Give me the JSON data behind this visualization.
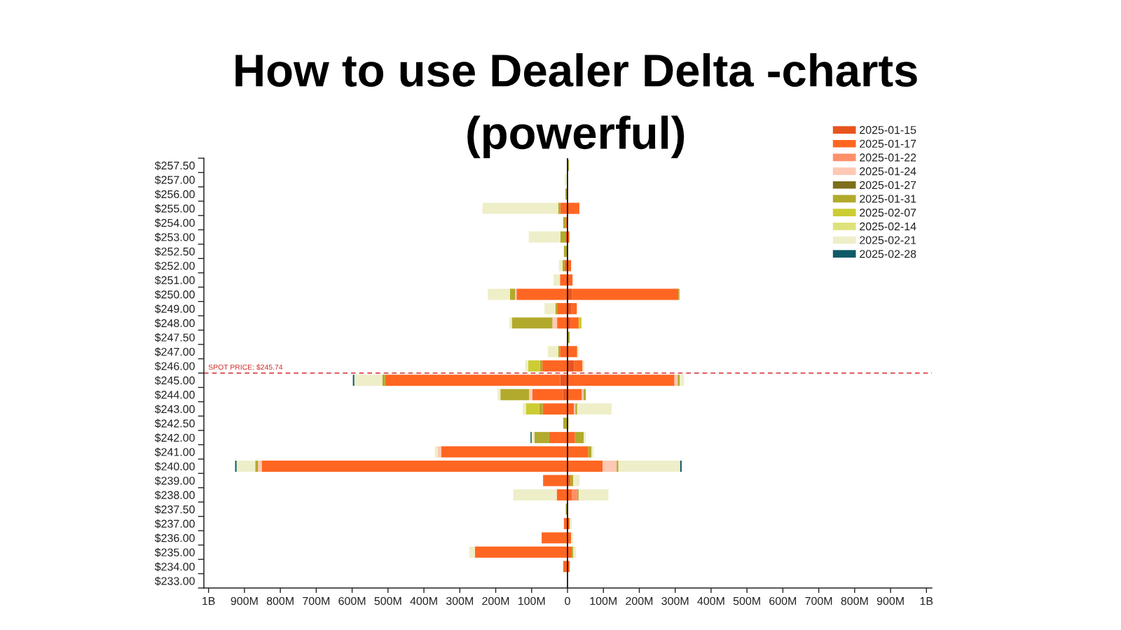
{
  "chart_data": {
    "type": "bar",
    "orientation": "horizontal",
    "stacked": true,
    "title": "How to use Dealer Delta -charts (powerful)",
    "categories": [
      "$257.50",
      "$257.00",
      "$256.00",
      "$255.00",
      "$254.00",
      "$253.00",
      "$252.50",
      "$252.00",
      "$251.00",
      "$250.00",
      "$249.00",
      "$248.00",
      "$247.50",
      "$247.00",
      "$246.00",
      "$245.00",
      "$244.00",
      "$243.00",
      "$242.50",
      "$242.00",
      "$241.00",
      "$240.00",
      "$239.00",
      "$238.00",
      "$237.50",
      "$237.00",
      "$236.00",
      "$235.00",
      "$234.00",
      "$233.00"
    ],
    "series": [
      {
        "name": "2025-01-15",
        "color": "#e8541f",
        "values": [
          null,
          null,
          null,
          null,
          null,
          null,
          null,
          null,
          null,
          12000000.0,
          10000000.0,
          8000000.0,
          null,
          null,
          18000000.0,
          null,
          null,
          null,
          null,
          null,
          null,
          null,
          null,
          null,
          null,
          null,
          null,
          null,
          null,
          null
        ]
      },
      {
        "color": "#e8541f",
        "values": [
          null,
          null,
          null,
          null,
          null,
          null,
          null,
          null,
          null,
          null,
          null,
          null,
          null,
          null,
          null,
          -20000000.0,
          -13000000.0,
          null,
          null,
          null,
          null,
          null,
          null,
          null,
          null,
          null,
          null,
          null,
          null,
          null
        ]
      },
      {
        "name": "2025-01-17",
        "color": "#ff6622",
        "values": [
          null,
          null,
          null,
          33000000.0,
          null,
          5000000.0,
          null,
          10000000.0,
          14000000.0,
          297000000.0,
          16000000.0,
          23000000.0,
          null,
          27000000.0,
          24000000.0,
          298000000.0,
          40000000.0,
          18000000.0,
          null,
          21000000.0,
          58000000.0,
          98000000.0,
          8000000.0,
          13000000.0,
          null,
          6000000.0,
          10000000.0,
          12000000.0,
          6000000.0,
          null
        ]
      },
      {
        "color": "#ff6622",
        "values": [
          null,
          null,
          null,
          -20000000.0,
          -4000000.0,
          -6000000.0,
          null,
          -8000000.0,
          -21000000.0,
          -142000000.0,
          -29000000.0,
          -29000000.0,
          null,
          -21000000.0,
          -70000000.0,
          -488000000.0,
          -85000000.0,
          -69000000.0,
          null,
          -51000000.0,
          -352000000.0,
          -852000000.0,
          -68000000.0,
          -30000000.0,
          null,
          -10000000.0,
          -72000000.0,
          -258000000.0,
          -12000000.0,
          null
        ]
      },
      {
        "name": "2025-01-22",
        "color": "#ff8f6b",
        "values": [
          null,
          null,
          null,
          null,
          null,
          null,
          null,
          null,
          null,
          null,
          null,
          null,
          null,
          null,
          null,
          null,
          null,
          null,
          null,
          null,
          null,
          null,
          null,
          14000000.0,
          null,
          null,
          null,
          null,
          null,
          null
        ]
      },
      {
        "name": "2025-01-24",
        "color": "#ffc8b4",
        "values": [
          null,
          null,
          null,
          null,
          null,
          null,
          null,
          null,
          null,
          null,
          null,
          null,
          null,
          null,
          null,
          9000000.0,
          5000000.0,
          4000000.0,
          null,
          null,
          null,
          39000000.0,
          null,
          null,
          null,
          null,
          null,
          null,
          null,
          null
        ]
      },
      {
        "color": "#ffc8b4",
        "values": [
          null,
          null,
          null,
          null,
          null,
          null,
          null,
          null,
          null,
          -4000000.0,
          null,
          -13000000.0,
          null,
          null,
          null,
          null,
          -9000000.0,
          null,
          null,
          null,
          -10000000.0,
          -10000000.0,
          null,
          null,
          null,
          null,
          null,
          null,
          null,
          null
        ]
      },
      {
        "name": "2025-01-27",
        "color": "#7d6e1c",
        "values": [
          null,
          null,
          null,
          null,
          null,
          null,
          null,
          null,
          null,
          null,
          null,
          null,
          null,
          null,
          null,
          null,
          null,
          null,
          null,
          null,
          null,
          null,
          null,
          null,
          null,
          null,
          null,
          null,
          null,
          null
        ]
      },
      {
        "name": "2025-01-31",
        "color": "#b2aa2c",
        "values": [
          4000000.0,
          null,
          null,
          null,
          null,
          null,
          null,
          null,
          null,
          3000000.0,
          null,
          null,
          6000000.0,
          null,
          null,
          6000000.0,
          6000000.0,
          5000000.0,
          null,
          24000000.0,
          9000000.0,
          5000000.0,
          8000000.0,
          4000000.0,
          null,
          null,
          null,
          4000000.0,
          null,
          null
        ]
      },
      {
        "color": "#b2aa2c",
        "values": [
          null,
          null,
          -6000000.0,
          -6000000.0,
          -8000000.0,
          -14000000.0,
          -10000000.0,
          -6000000.0,
          null,
          -14000000.0,
          -5000000.0,
          -113000000.0,
          null,
          -5000000.0,
          -7000000.0,
          -8000000.0,
          -80000000.0,
          -10000000.0,
          -12000000.0,
          -41000000.0,
          null,
          -8000000.0,
          null,
          null,
          -5000000.0,
          null,
          null,
          null,
          null,
          null
        ]
      },
      {
        "name": "2025-02-07",
        "color": "#cccc33",
        "values": [
          null,
          null,
          null,
          null,
          null,
          null,
          null,
          null,
          null,
          null,
          null,
          8000000.0,
          null,
          null,
          null,
          null,
          null,
          null,
          null,
          null,
          null,
          null,
          null,
          null,
          null,
          null,
          null,
          null,
          null,
          null
        ]
      },
      {
        "color": "#cccc33",
        "values": [
          null,
          null,
          null,
          null,
          null,
          null,
          null,
          null,
          null,
          null,
          null,
          null,
          null,
          null,
          -33000000.0,
          null,
          null,
          -37000000.0,
          null,
          null,
          null,
          null,
          null,
          null,
          null,
          null,
          null,
          null,
          null,
          null
        ]
      },
      {
        "name": "2025-02-14",
        "color": "#dee27c",
        "values": [
          null,
          null,
          null,
          null,
          null,
          null,
          null,
          null,
          null,
          null,
          null,
          null,
          null,
          null,
          null,
          null,
          null,
          null,
          null,
          null,
          null,
          null,
          null,
          null,
          null,
          null,
          null,
          null,
          null,
          null
        ]
      },
      {
        "name": "2025-02-21",
        "color": "#eeefc9",
        "values": [
          null,
          null,
          null,
          null,
          null,
          null,
          null,
          null,
          null,
          null,
          null,
          null,
          null,
          5000000.0,
          5000000.0,
          12000000.0,
          null,
          96000000.0,
          6000000.0,
          6000000.0,
          6000000.0,
          172000000.0,
          18000000.0,
          83000000.0,
          null,
          6000000.0,
          6000000.0,
          8000000.0,
          null,
          null
        ]
      },
      {
        "color": "#eeefc9",
        "values": [
          null,
          -8000000.0,
          null,
          -211000000.0,
          null,
          -88000000.0,
          null,
          -10000000.0,
          -18000000.0,
          -62000000.0,
          -30000000.0,
          -7000000.0,
          null,
          -29000000.0,
          -8000000.0,
          -78000000.0,
          -8000000.0,
          -9000000.0,
          null,
          -8000000.0,
          -8000000.0,
          -52000000.0,
          null,
          -121000000.0,
          null,
          null,
          null,
          -16000000.0,
          null,
          null
        ]
      },
      {
        "name": "2025-02-28",
        "color": "#0d5b66",
        "values": [
          null,
          null,
          null,
          null,
          null,
          null,
          null,
          null,
          null,
          null,
          null,
          null,
          null,
          null,
          null,
          null,
          null,
          null,
          null,
          null,
          null,
          4000000.0,
          null,
          null,
          null,
          null,
          null,
          null,
          null,
          null
        ]
      },
      {
        "color": "#0d5b66",
        "values": [
          null,
          null,
          null,
          null,
          null,
          null,
          null,
          null,
          null,
          null,
          null,
          null,
          null,
          null,
          null,
          -4000000.0,
          null,
          null,
          null,
          -3000000.0,
          null,
          -4000000.0,
          null,
          null,
          null,
          null,
          null,
          null,
          null,
          null
        ]
      }
    ],
    "xlim": [
      -1013000000.0,
      1015000000.0
    ],
    "xticks": [
      {
        "value": -1000000000.0,
        "label": "1B"
      },
      {
        "value": -900000000.0,
        "label": "900M"
      },
      {
        "value": -800000000.0,
        "label": "800M"
      },
      {
        "value": -700000000.0,
        "label": "700M"
      },
      {
        "value": -600000000.0,
        "label": "600M"
      },
      {
        "value": -500000000.0,
        "label": "500M"
      },
      {
        "value": -400000000.0,
        "label": "400M"
      },
      {
        "value": -300000000.0,
        "label": "300M"
      },
      {
        "value": -200000000.0,
        "label": "200M"
      },
      {
        "value": -100000000.0,
        "label": "100M"
      },
      0,
      {
        "value": 100000000.0,
        "label": "100M"
      },
      {
        "value": 200000000.0,
        "label": "200M"
      },
      {
        "value": 300000000.0,
        "label": "300M"
      },
      {
        "value": 400000000.0,
        "label": "400M"
      },
      {
        "value": 500000000.0,
        "label": "500M"
      },
      {
        "value": 600000000.0,
        "label": "600M"
      },
      {
        "value": 700000000.0,
        "label": "700M"
      },
      {
        "value": 800000000.0,
        "label": "800M"
      },
      {
        "value": 900000000.0,
        "label": "900M"
      },
      {
        "value": 1000000000.0,
        "label": "1B"
      }
    ],
    "ref_lines": [
      {
        "axis": "x",
        "value": 0,
        "color": "#000000"
      },
      {
        "axis": "y",
        "value": "$245.00",
        "label": "SPOT PRICE: $245.74",
        "color": "#d42a2a",
        "line_style": "dashed"
      }
    ],
    "legend": "top right"
  }
}
